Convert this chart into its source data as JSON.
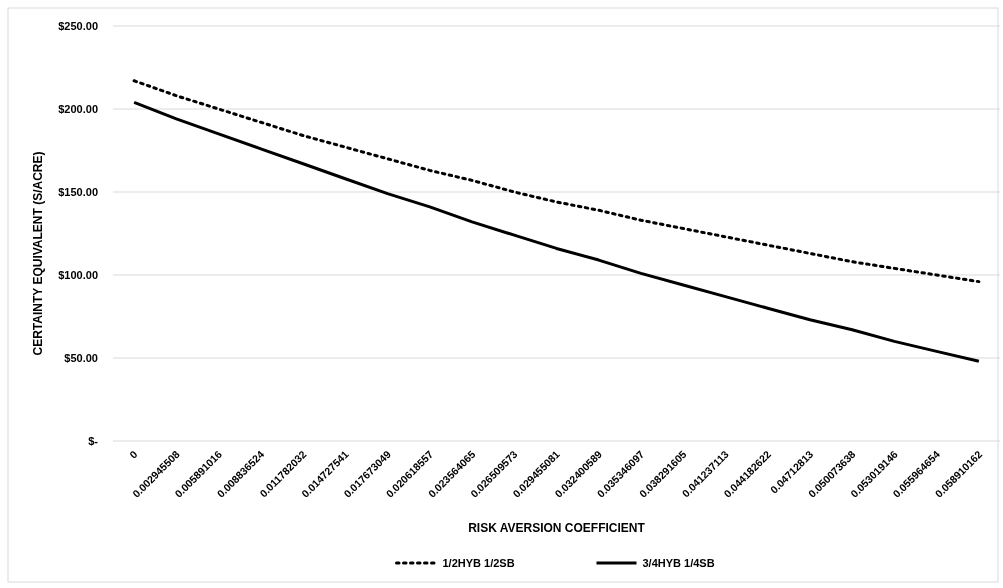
{
  "chart_data": {
    "type": "line",
    "xlabel": "RISK AVERSION COEFFICIENT",
    "ylabel": "CERTAINTY EQUIVALENT (S/ACRE)",
    "categories": [
      "0",
      "0.002945508",
      "0.005891016",
      "0.008836524",
      "0.011782032",
      "0.014727541",
      "0.017673049",
      "0.020618557",
      "0.023564065",
      "0.026509573",
      "0.029455081",
      "0.032400589",
      "0.035346097",
      "0.038291605",
      "0.041237113",
      "0.044182622",
      "0.04712813",
      "0.050073638",
      "0.053019146",
      "0.055964654",
      "0.058910162"
    ],
    "series": [
      {
        "name": "1/2HYB 1/2SB",
        "color": "#000000",
        "line_style": "dotted",
        "values": [
          217,
          208,
          200,
          192,
          184,
          177,
          170,
          163,
          157,
          150,
          144,
          139,
          133,
          128,
          123,
          118,
          113,
          108,
          104,
          100,
          96
        ]
      },
      {
        "name": "3/4HYB 1/4SB",
        "color": "#000000",
        "line_style": "solid",
        "values": [
          204,
          194,
          185,
          176,
          167,
          158,
          149,
          141,
          132,
          124,
          116,
          109,
          101,
          94,
          87,
          80,
          73,
          67,
          60,
          54,
          48
        ]
      }
    ],
    "ylim": [
      0,
      250
    ],
    "yticks": [
      {
        "value": 0,
        "label": "$-"
      },
      {
        "value": 50,
        "label": "$50.00"
      },
      {
        "value": 100,
        "label": "$100.00"
      },
      {
        "value": 150,
        "label": "$150.00"
      },
      {
        "value": 200,
        "label": "$200.00"
      },
      {
        "value": 250,
        "label": "$250.00"
      }
    ],
    "grid": "y",
    "legend": "bottom",
    "marker": "none"
  }
}
